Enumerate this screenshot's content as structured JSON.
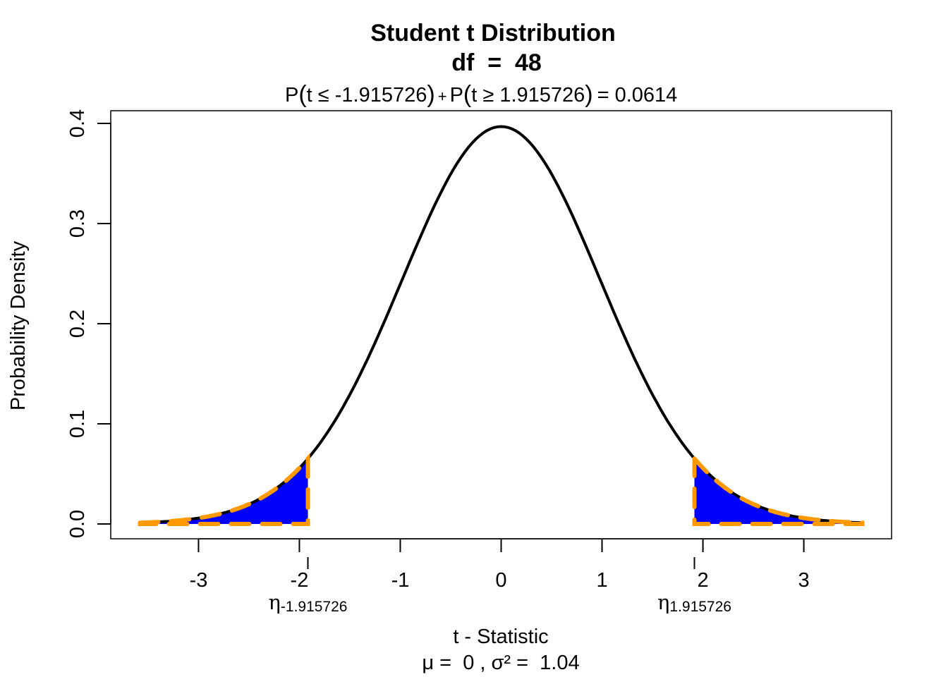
{
  "chart_data": {
    "type": "area",
    "title": "Student t Distribution",
    "subtitle": "df  =  48",
    "annotation": {
      "prefix_left": "P",
      "left_inner": "t ≤ -1.915726",
      "plus": "+",
      "prefix_right": "P",
      "right_inner": "t ≥ 1.915726",
      "equals": "= 0.0614"
    },
    "xlabel": "t - Statistic",
    "xlabel2": "μ =  0 , σ² =  1.04",
    "ylabel": "Probability Density",
    "df": 48,
    "critical_values": [
      -1.915726,
      1.915726
    ],
    "tail_probability": 0.0614,
    "x_range": [
      -3.58,
      3.58
    ],
    "xlim": [
      -3.87,
      3.87
    ],
    "ylim": [
      -0.0148,
      0.4127
    ],
    "xticks": [
      -3,
      -2,
      -1,
      0,
      1,
      2,
      3
    ],
    "xtick_labels": [
      "-3",
      "-2",
      "-1",
      "0",
      "1",
      "2",
      "3"
    ],
    "yticks": [
      0.0,
      0.1,
      0.2,
      0.3,
      0.4
    ],
    "ytick_labels": [
      "0.0",
      "0.1",
      "0.2",
      "0.3",
      "0.4"
    ],
    "critical_labels": [
      {
        "symbol": "η",
        "sub": "-1.915726"
      },
      {
        "symbol": "η",
        "sub": "1.915726"
      }
    ],
    "grid": false,
    "colors": {
      "curve": "#000000",
      "tail_fill": "#0000ff",
      "tail_outline": "#ff9900"
    }
  }
}
